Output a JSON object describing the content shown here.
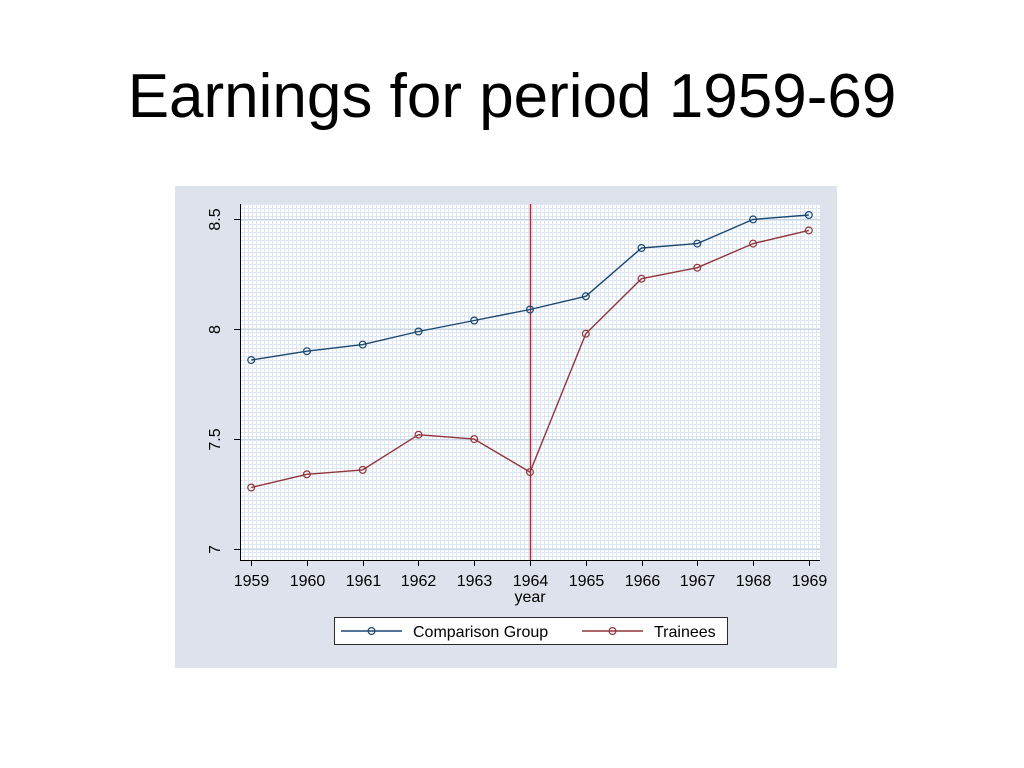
{
  "colors": {
    "page_background": "#ffffff",
    "panel_background": "#dde2ec",
    "plot_background": "#ffffff",
    "grid": "#c8d5e4",
    "grid_mesh": "#dde6f1",
    "axis": "#000000"
  },
  "chart_data": {
    "type": "line",
    "title": "Earnings for period 1959-69",
    "x": [
      1959,
      1960,
      1961,
      1962,
      1963,
      1964,
      1965,
      1966,
      1967,
      1968,
      1969
    ],
    "series": [
      {
        "name": "Comparison Group",
        "color": "#1a476f",
        "values": [
          7.86,
          7.9,
          7.93,
          7.99,
          8.04,
          8.09,
          8.15,
          8.37,
          8.39,
          8.5,
          8.52
        ]
      },
      {
        "name": "Trainees",
        "color": "#90353b",
        "values": [
          7.28,
          7.34,
          7.36,
          7.52,
          7.5,
          7.35,
          7.98,
          8.23,
          8.28,
          8.39,
          8.45
        ]
      }
    ],
    "xlabel": "year",
    "xticks": [
      1959,
      1960,
      1961,
      1962,
      1963,
      1964,
      1965,
      1966,
      1967,
      1968,
      1969
    ],
    "xtick_labels": [
      "1959",
      "1960",
      "1961",
      "1962",
      "1963",
      "1964",
      "1965",
      "1966",
      "1967",
      "1968",
      "1969"
    ],
    "yticks": [
      7,
      7.5,
      8,
      8.5
    ],
    "ytick_labels": [
      "7",
      "7.5",
      "8",
      "8.5"
    ],
    "xlim": [
      1958.8,
      1969.2
    ],
    "ylim": [
      6.95,
      8.57
    ],
    "reference_line": {
      "x": 1964,
      "color": "#b8232f"
    },
    "grid": true,
    "legend": "bottom"
  }
}
